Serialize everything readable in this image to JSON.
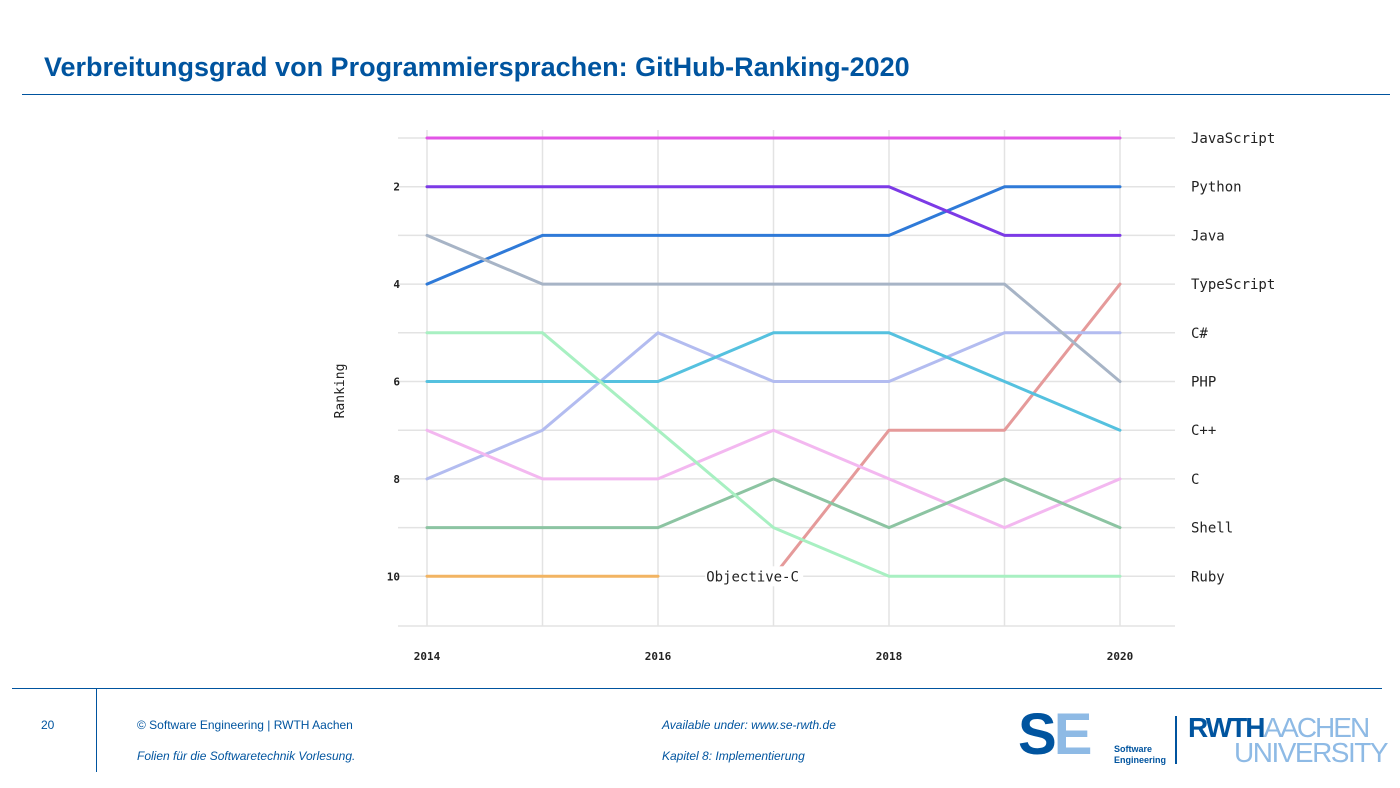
{
  "slide": {
    "title": "Verbreitungsgrad von Programmiersprachen: GitHub-Ranking-2020"
  },
  "footer": {
    "page_number": "20",
    "copyright": "©  Software Engineering  |  RWTH Aachen",
    "subtitle": "Folien für die Softwaretechnik Vorlesung.",
    "available": "Available under:  www.se-rwth.de",
    "chapter": "Kapitel 8: Implementierung"
  },
  "logos": {
    "se_letters_1": "S",
    "se_letters_2": "E",
    "se_line1": "Software",
    "se_line2": "Engineering",
    "rwth_part1": "RWTH",
    "rwth_part2": "AACHEN",
    "rwth_line2": "UNIVERSITY"
  },
  "colors": {
    "brand_blue": "#00549f",
    "light_blue": "#8ebae5"
  },
  "chart_data": {
    "type": "line",
    "ylabel": "Ranking",
    "xlabel": "",
    "x": [
      2014,
      2015,
      2016,
      2017,
      2018,
      2019,
      2020
    ],
    "x_ticks": [
      2014,
      2016,
      2018,
      2020
    ],
    "y_ticks": [
      2,
      4,
      6,
      8,
      10
    ],
    "ylim": [
      11,
      0
    ],
    "y_inverted": true,
    "grid": true,
    "series": [
      {
        "name": "JavaScript",
        "color": "#e255e6",
        "values": [
          1,
          1,
          1,
          1,
          1,
          1,
          1
        ]
      },
      {
        "name": "Python",
        "color": "#2f7ad8",
        "values": [
          4,
          3,
          3,
          3,
          3,
          2,
          2
        ]
      },
      {
        "name": "Java",
        "color": "#7c3ae6",
        "values": [
          2,
          2,
          2,
          2,
          2,
          3,
          3
        ]
      },
      {
        "name": "TypeScript",
        "color": "#e59a9a",
        "values": [
          null,
          null,
          null,
          10,
          7,
          7,
          4
        ]
      },
      {
        "name": "C#",
        "color": "#b3bcf0",
        "values": [
          8,
          7,
          5,
          6,
          6,
          5,
          5
        ]
      },
      {
        "name": "PHP",
        "color": "#a7b4c6",
        "values": [
          3,
          4,
          4,
          4,
          4,
          4,
          6
        ]
      },
      {
        "name": "C++",
        "color": "#55c1df",
        "values": [
          6,
          6,
          6,
          5,
          5,
          6,
          7
        ]
      },
      {
        "name": "C",
        "color": "#f3b8f0",
        "values": [
          7,
          8,
          8,
          7,
          8,
          9,
          8
        ]
      },
      {
        "name": "Shell",
        "color": "#8cc4a2",
        "values": [
          9,
          9,
          9,
          8,
          9,
          8,
          9
        ]
      },
      {
        "name": "Ruby",
        "color": "#a8f0c2",
        "values": [
          5,
          5,
          7,
          9,
          10,
          10,
          10
        ]
      },
      {
        "name": "Objective-C",
        "color": "#f2b462",
        "values": [
          10,
          10,
          10,
          null,
          null,
          null,
          null
        ]
      }
    ],
    "right_labels": [
      "JavaScript",
      "Python",
      "Java",
      "TypeScript",
      "C#",
      "PHP",
      "C++",
      "C",
      "Shell",
      "Ruby"
    ],
    "inline_label": {
      "text": "Objective-C",
      "x": 2016.4,
      "y": 10
    }
  }
}
